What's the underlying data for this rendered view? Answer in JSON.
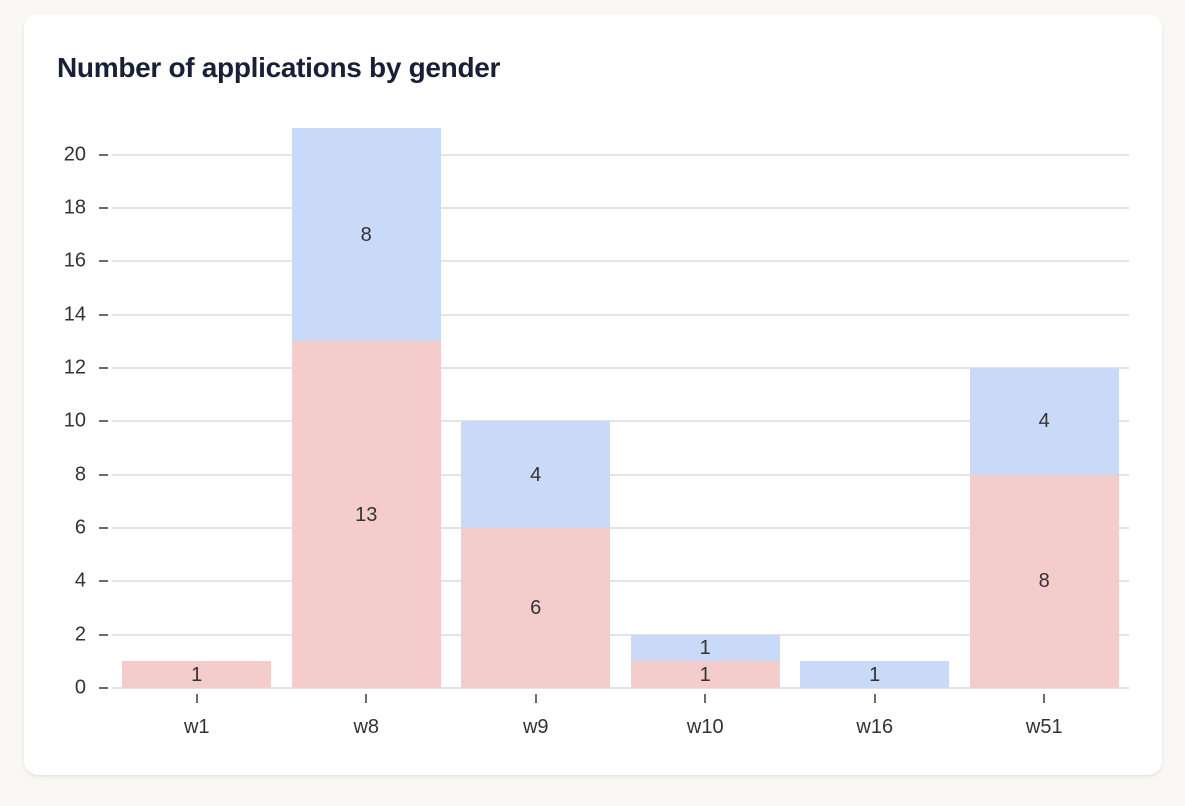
{
  "page": {
    "background_color": "#faf8f5",
    "card_background_color": "#ffffff"
  },
  "chart_data": {
    "type": "bar",
    "stacked": true,
    "title": "Number of applications by gender",
    "categories": [
      "w1",
      "w8",
      "w9",
      "w10",
      "w16",
      "w51"
    ],
    "series": [
      {
        "name": "pink",
        "color": "#f4cccc",
        "values": [
          1,
          13,
          6,
          1,
          0,
          8
        ]
      },
      {
        "name": "blue",
        "color": "#c9daf8",
        "values": [
          0,
          8,
          4,
          1,
          1,
          4
        ]
      }
    ],
    "totals": [
      1,
      21,
      10,
      2,
      1,
      12
    ],
    "xlabel": "",
    "ylabel": "",
    "y_ticks": [
      0,
      2,
      4,
      6,
      8,
      10,
      12,
      14,
      16,
      18,
      20
    ],
    "ylim": [
      0,
      21
    ],
    "grid": true,
    "legend_position": "none",
    "title_color": "#181f38",
    "axis_label_color": "#333333",
    "bar_label_color": "#333333",
    "grid_color": "#e4e4e4",
    "tick_color": "#6b6b6b"
  }
}
